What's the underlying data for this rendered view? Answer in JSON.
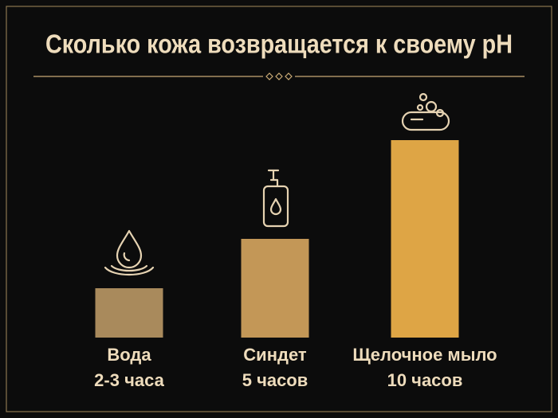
{
  "chart_data": {
    "type": "bar",
    "title": "Сколько кожа возвращается к своему pH",
    "categories": [
      "Вода",
      "Синдет",
      "Щелочное мыло"
    ],
    "values": [
      2.5,
      5,
      10
    ],
    "value_labels": [
      "2-3 часа",
      "5 часов",
      "10 часов"
    ],
    "colors": [
      "#a98a5c",
      "#c39757",
      "#dea545"
    ]
  }
}
